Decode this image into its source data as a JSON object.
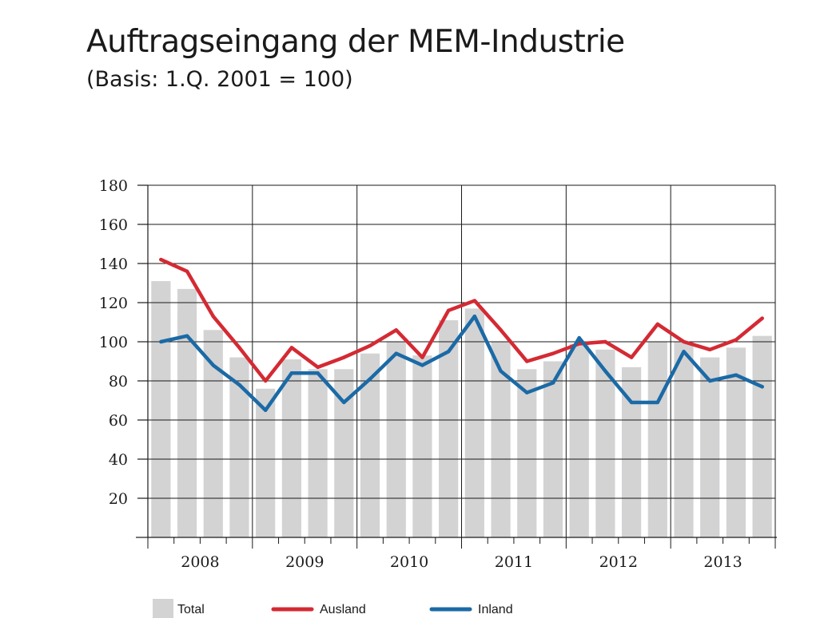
{
  "chart_data": {
    "type": "bar",
    "title": "Auftragseingang der MEM-Industrie",
    "subtitle": "(Basis: 1.Q. 2001 = 100)",
    "xlabel": "",
    "ylabel": "",
    "ylim": [
      0,
      180
    ],
    "yticks": [
      20,
      40,
      60,
      80,
      100,
      120,
      140,
      160,
      180
    ],
    "grid": true,
    "years": [
      "2008",
      "2009",
      "2010",
      "2011",
      "2012",
      "2013"
    ],
    "quarters_per_year": 4,
    "legend_position": "bottom",
    "series": [
      {
        "name": "Total",
        "kind": "bar",
        "color": "#d3d3d4",
        "values": [
          131,
          127,
          106,
          92,
          76,
          91,
          86,
          86,
          94,
          100,
          93,
          111,
          117,
          100,
          86,
          90,
          99,
          96,
          87,
          100,
          100,
          92,
          97,
          103
        ]
      },
      {
        "name": "Ausland",
        "kind": "line",
        "color": "#d42a33",
        "values": [
          142,
          136,
          113,
          97,
          80,
          97,
          87,
          92,
          98,
          106,
          92,
          116,
          121,
          106,
          90,
          94,
          99,
          100,
          92,
          109,
          100,
          96,
          101,
          112
        ]
      },
      {
        "name": "Inland",
        "kind": "line",
        "color": "#1b6aa6",
        "values": [
          100,
          103,
          88,
          78,
          65,
          84,
          84,
          69,
          81,
          94,
          88,
          95,
          113,
          85,
          74,
          79,
          102,
          85,
          69,
          69,
          95,
          80,
          83,
          77
        ]
      }
    ]
  }
}
